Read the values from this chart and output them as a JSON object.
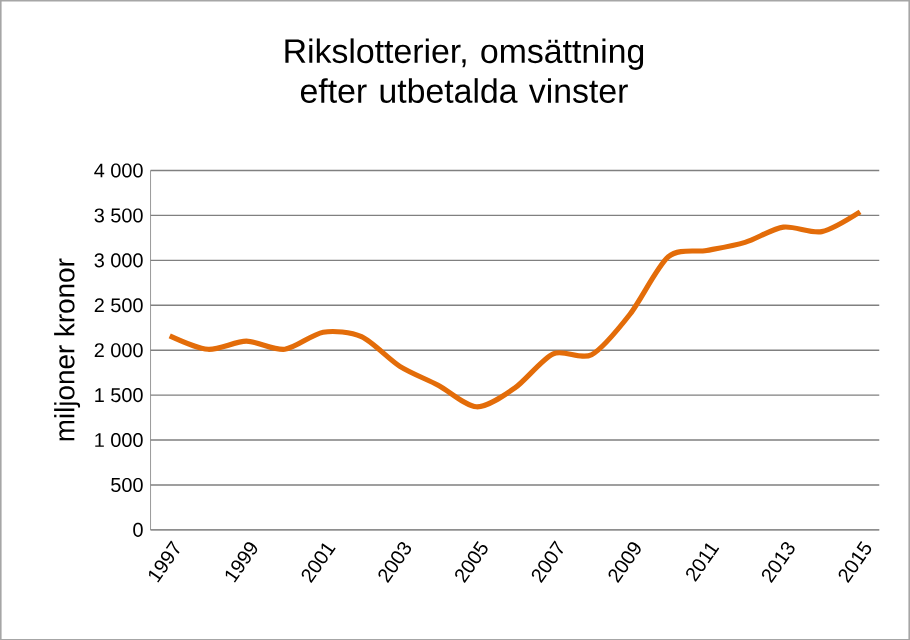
{
  "chart_data": {
    "type": "line",
    "title": "Rikslotterier, omsättning efter utbetalda vinster",
    "ylabel": "miljoner kronor",
    "categories": [
      "1997",
      null,
      "1999",
      null,
      "2001",
      null,
      "2003",
      null,
      "2005",
      null,
      "2007",
      null,
      "2009",
      null,
      "2011",
      null,
      "2013",
      null,
      "2015"
    ],
    "series": [
      {
        "color": "#e36c09",
        "values": [
          2160,
          2010,
          2100,
          2010,
          2200,
          2150,
          1820,
          1610,
          1370,
          1580,
          1960,
          1950,
          2400,
          3040,
          3110,
          3200,
          3370,
          3320,
          3540
        ]
      }
    ],
    "ylim": [
      0,
      4000
    ],
    "yticks": [
      {
        "value": 0,
        "label": "0"
      },
      {
        "value": 500,
        "label": "500"
      },
      {
        "value": 1000,
        "label": "1 000"
      },
      {
        "value": 1500,
        "label": "1 500"
      },
      {
        "value": 2000,
        "label": "2 000"
      },
      {
        "value": 2500,
        "label": "2 500"
      },
      {
        "value": 3000,
        "label": "3 000"
      },
      {
        "value": 3500,
        "label": "3 500"
      },
      {
        "value": 4000,
        "label": "4 000"
      }
    ],
    "grid": "y",
    "marker": "none",
    "line_style": "solid"
  }
}
